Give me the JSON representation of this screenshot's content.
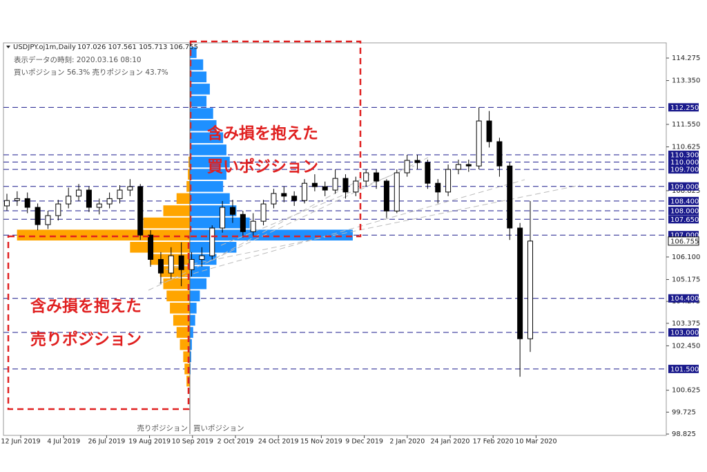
{
  "header": {
    "symbol": "USDJPY.oj1m,Daily",
    "ohlc": "107.026 107.561 105.713 106.755",
    "time": "表示データの時刻: 2020.03.16 08:10",
    "ratio": "買いポジション 56.3% 売りポジション 43.7%"
  },
  "chart_data": {
    "type": "candlestick",
    "ohlc": [
      [
        108.2,
        108.7,
        108.0,
        108.42
      ],
      [
        108.42,
        108.8,
        108.2,
        108.5
      ],
      [
        108.5,
        108.75,
        107.9,
        108.14
      ],
      [
        108.14,
        108.3,
        107.2,
        107.43
      ],
      [
        107.43,
        108.0,
        107.25,
        107.8
      ],
      [
        107.8,
        108.45,
        107.6,
        108.28
      ],
      [
        108.28,
        108.95,
        108.1,
        108.6
      ],
      [
        108.6,
        109.1,
        108.4,
        108.85
      ],
      [
        108.85,
        109.0,
        107.95,
        108.14
      ],
      [
        108.14,
        108.5,
        107.85,
        108.28
      ],
      [
        108.28,
        108.75,
        108.1,
        108.5
      ],
      [
        108.5,
        109.05,
        108.3,
        108.85
      ],
      [
        108.85,
        109.3,
        108.6,
        108.99
      ],
      [
        108.99,
        109.1,
        106.8,
        107.0
      ],
      [
        107.0,
        107.2,
        105.7,
        106.0
      ],
      [
        106.0,
        106.3,
        105.0,
        105.44
      ],
      [
        105.44,
        106.5,
        105.2,
        106.15
      ],
      [
        106.15,
        106.7,
        104.9,
        105.58
      ],
      [
        105.58,
        106.3,
        105.3,
        106.0
      ],
      [
        106.0,
        106.5,
        105.7,
        106.15
      ],
      [
        106.15,
        107.4,
        106.0,
        107.29
      ],
      [
        107.29,
        108.4,
        107.1,
        108.14
      ],
      [
        108.14,
        108.45,
        107.5,
        107.85
      ],
      [
        107.85,
        108.0,
        106.9,
        107.14
      ],
      [
        107.14,
        107.9,
        106.95,
        107.57
      ],
      [
        107.57,
        108.45,
        107.4,
        108.28
      ],
      [
        108.28,
        108.9,
        108.1,
        108.71
      ],
      [
        108.71,
        109.0,
        108.35,
        108.6
      ],
      [
        108.6,
        108.8,
        108.2,
        108.42
      ],
      [
        108.42,
        109.3,
        108.3,
        109.13
      ],
      [
        109.13,
        109.5,
        108.8,
        108.99
      ],
      [
        108.99,
        109.2,
        108.6,
        108.85
      ],
      [
        108.85,
        109.7,
        108.7,
        109.33
      ],
      [
        109.33,
        109.5,
        108.5,
        108.77
      ],
      [
        108.77,
        109.4,
        108.6,
        109.22
      ],
      [
        109.22,
        109.7,
        109.0,
        109.56
      ],
      [
        109.56,
        109.7,
        108.9,
        109.22
      ],
      [
        109.22,
        109.3,
        107.7,
        107.99
      ],
      [
        107.99,
        109.7,
        107.9,
        109.56
      ],
      [
        109.56,
        110.3,
        109.4,
        110.07
      ],
      [
        110.07,
        110.3,
        109.7,
        109.98
      ],
      [
        109.98,
        110.1,
        108.9,
        109.13
      ],
      [
        109.13,
        109.3,
        108.3,
        108.77
      ],
      [
        108.77,
        109.9,
        108.6,
        109.7
      ],
      [
        109.7,
        110.1,
        109.5,
        109.9
      ],
      [
        109.9,
        110.1,
        109.6,
        109.84
      ],
      [
        109.84,
        112.25,
        109.7,
        111.69
      ],
      [
        111.69,
        112.1,
        110.6,
        110.84
      ],
      [
        110.84,
        111.0,
        109.4,
        109.84
      ],
      [
        109.84,
        110.0,
        106.8,
        107.29
      ],
      [
        107.29,
        107.5,
        101.18,
        102.74
      ],
      [
        102.74,
        108.4,
        102.2,
        106.755
      ]
    ],
    "ylim": [
      98.77,
      114.9
    ],
    "yticks": [
      114.275,
      {
        "value": 113.35,
        "label": "113.350"
      },
      {
        "value": 111.55,
        "label": "111.550"
      },
      110.625,
      108.825,
      {
        "value": 106.1,
        "label": "106.100"
      },
      105.175,
      104.275,
      103.375,
      {
        "value": 102.45,
        "label": "102.450"
      },
      100.625,
      99.725,
      98.825
    ],
    "x_labels": [
      "12 Jun 2019",
      "4 Jul 2019",
      "26 Jul 2019",
      "19 Aug 2019",
      "10 Sep 2019",
      "2 Oct 2019",
      "24 Oct 2019",
      "15 Nov 2019",
      "9 Dec 2019",
      "2 Jan 2020",
      "24 Jan 2020",
      "17 Feb 2020",
      "10 Mar 2020"
    ],
    "levels": [
      {
        "value": 112.25,
        "label": "112.250"
      },
      {
        "value": 110.3,
        "label": "110.300"
      },
      {
        "value": 110.0,
        "label": "110.000"
      },
      {
        "value": 109.7,
        "label": "109.700"
      },
      {
        "value": 109.0,
        "label": "109.000"
      },
      {
        "value": 108.4,
        "label": "108.400"
      },
      {
        "value": 108.0,
        "label": "108.000"
      },
      {
        "value": 107.65,
        "label": "107.650"
      },
      {
        "value": 107.0,
        "label": "107.000"
      },
      {
        "value": 104.4,
        "label": "104.400"
      },
      {
        "value": 103.0,
        "label": "103.000"
      },
      {
        "value": 101.5,
        "label": "101.500"
      }
    ],
    "level_color": "#1a1a8c",
    "current_price": 106.755,
    "position_histogram": {
      "levels": [
        114.5,
        114.0,
        113.5,
        113.0,
        112.5,
        112.0,
        111.5,
        111.0,
        110.5,
        110.0,
        109.5,
        109.0,
        108.5,
        108.0,
        107.5,
        107.0,
        106.5,
        106.0,
        105.5,
        105.0,
        104.5,
        104.0,
        103.5,
        103.0,
        102.5,
        102.0,
        101.5,
        101.0
      ],
      "sell": [
        0,
        0,
        0,
        0,
        0,
        0,
        0,
        0,
        0,
        2,
        3,
        5,
        20,
        40,
        70,
        260,
        90,
        60,
        45,
        40,
        35,
        30,
        25,
        20,
        15,
        10,
        8,
        5
      ],
      "buy": [
        10,
        20,
        25,
        30,
        25,
        35,
        40,
        50,
        55,
        60,
        55,
        50,
        60,
        70,
        90,
        245,
        70,
        40,
        30,
        25,
        15,
        10,
        8,
        5,
        3,
        2,
        1,
        0
      ],
      "xlim": [
        0,
        270
      ],
      "sell_color": "#ffa500",
      "buy_color": "#1e90ff"
    },
    "annotations": [
      "含み損を抱えた",
      "買いポジション",
      "含み損を抱えた",
      "売りポジション"
    ],
    "histogram_labels": [
      "売りポジション",
      "買いポジション"
    ]
  }
}
